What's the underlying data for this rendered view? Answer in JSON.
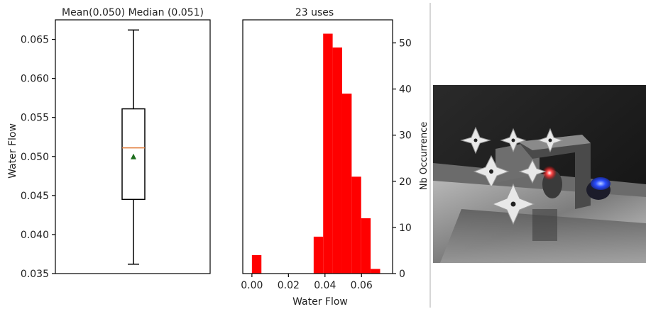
{
  "chart_data": [
    {
      "type": "box",
      "title": "Mean(0.050) Median (0.051)",
      "ylabel": "Water Flow",
      "ylim": [
        0.035,
        0.0675
      ],
      "yticks": [
        "0.035",
        "0.040",
        "0.045",
        "0.050",
        "0.055",
        "0.060",
        "0.065"
      ],
      "stats": {
        "min": 0.0362,
        "q1": 0.0445,
        "median": 0.0511,
        "q3": 0.0561,
        "max": 0.0662,
        "mean": 0.05
      },
      "colors": {
        "box": "#000000",
        "median": "#e07b39",
        "mean": "#1e6e1e"
      }
    },
    {
      "type": "bar",
      "subtype": "histogram",
      "title": "23 uses",
      "xlabel": "Water Flow",
      "ylabel": "Nb Occurrence",
      "xlim": [
        -0.005,
        0.077
      ],
      "ylim": [
        0,
        55
      ],
      "xticks": [
        "0.00",
        "0.02",
        "0.04",
        "0.06"
      ],
      "yticks": [
        "0",
        "10",
        "20",
        "30",
        "40",
        "50"
      ],
      "bin_width": 0.0052,
      "bins": [
        {
          "x": 0.0,
          "count": 4
        },
        {
          "x": 0.0052,
          "count": 0
        },
        {
          "x": 0.0104,
          "count": 0
        },
        {
          "x": 0.0156,
          "count": 0
        },
        {
          "x": 0.0208,
          "count": 0
        },
        {
          "x": 0.026,
          "count": 0
        },
        {
          "x": 0.0338,
          "count": 8
        },
        {
          "x": 0.039,
          "count": 52
        },
        {
          "x": 0.0442,
          "count": 49
        },
        {
          "x": 0.0494,
          "count": 39
        },
        {
          "x": 0.0546,
          "count": 21
        },
        {
          "x": 0.0598,
          "count": 12
        },
        {
          "x": 0.065,
          "count": 1
        }
      ],
      "color": "#ff0000"
    }
  ],
  "photo": {
    "description_icon": "vr-faucet-scene",
    "colors": {
      "red_light": "#ff2a2a",
      "blue_button": "#2a4dff",
      "counter": "#8a8a8a"
    }
  }
}
